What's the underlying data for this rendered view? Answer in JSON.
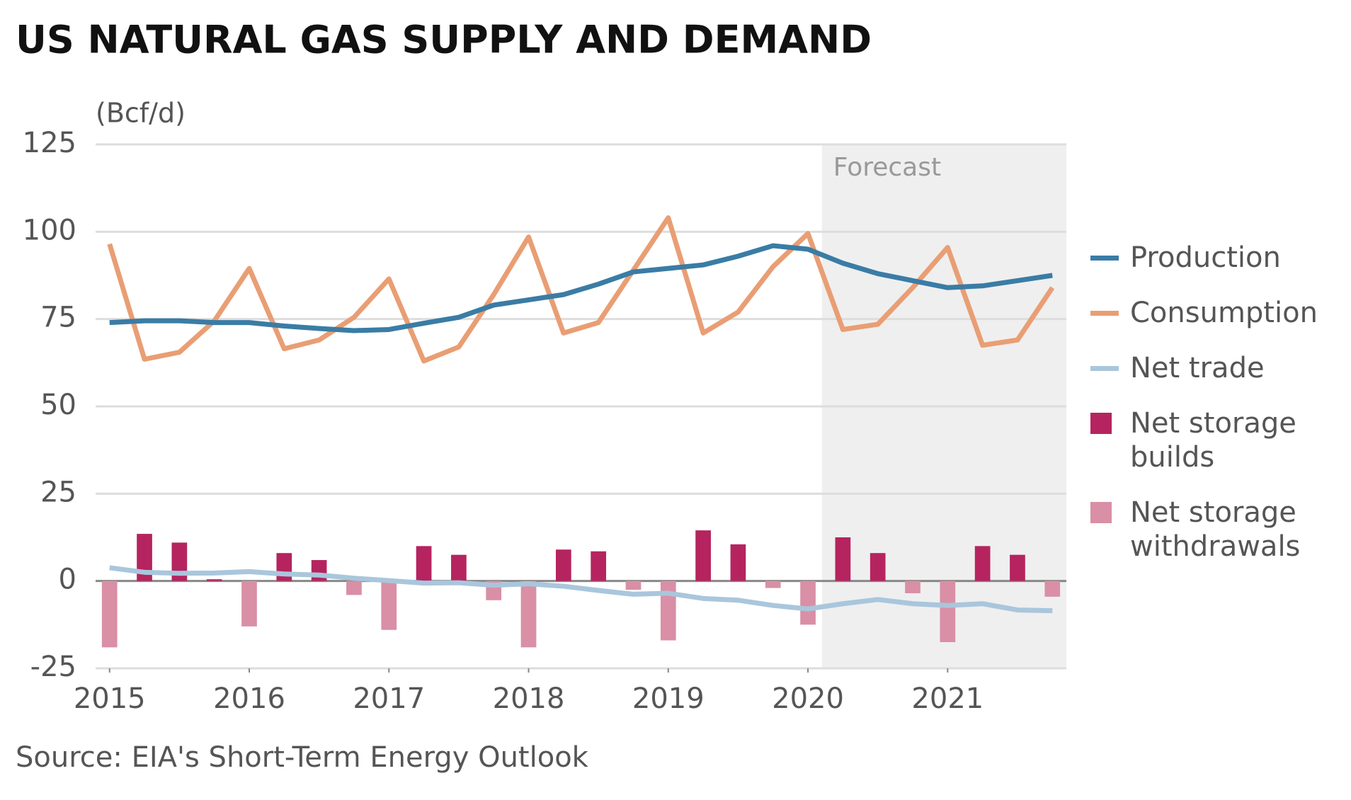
{
  "chart_data": {
    "type": "line",
    "title": "US NATURAL GAS SUPPLY AND DEMAND",
    "y_unit": "(Bcf/d)",
    "source": "Source: EIA's Short-Term Energy Outlook",
    "annotation": "Forecast",
    "shaded_region": [
      2020.1,
      2021.85
    ],
    "x": [
      2015,
      2015.25,
      2015.5,
      2015.75,
      2016,
      2016.25,
      2016.5,
      2016.75,
      2017,
      2017.25,
      2017.5,
      2017.75,
      2018,
      2018.25,
      2018.5,
      2018.75,
      2019,
      2019.25,
      2019.5,
      2019.75,
      2020,
      2020.25,
      2020.5,
      2020.75,
      2021,
      2021.25,
      2021.5,
      2021.75
    ],
    "xlim": [
      2014.9,
      2021.85
    ],
    "xticks": [
      2015,
      2016,
      2017,
      2018,
      2019,
      2020,
      2021
    ],
    "ylim": [
      -25,
      125
    ],
    "yticks": [
      -25,
      0,
      25,
      50,
      75,
      100,
      125
    ],
    "grid": true,
    "series": [
      {
        "name": "Production",
        "type": "line",
        "color": "#3a7ca5",
        "values": [
          74,
          74.5,
          74.5,
          74,
          74,
          73,
          72.3,
          71.7,
          72,
          73.8,
          75.5,
          79,
          80.5,
          82,
          85,
          88.5,
          89.5,
          90.5,
          93,
          96,
          95,
          91,
          88,
          86,
          84,
          84.5,
          86,
          87.5
        ]
      },
      {
        "name": "Consumption",
        "type": "line",
        "color": "#e99e74",
        "values": [
          96.5,
          63.5,
          65.5,
          74.5,
          89.5,
          66.5,
          69,
          75.5,
          86.5,
          63,
          67,
          82,
          98.5,
          71,
          74,
          89,
          104,
          71,
          77,
          90,
          99.5,
          72,
          73.5,
          84,
          95.5,
          67.5,
          69,
          84
        ]
      },
      {
        "name": "Net trade",
        "type": "line",
        "color": "#a9c6dc",
        "values": [
          3.8,
          2.5,
          2.2,
          2.3,
          2.7,
          2,
          1.7,
          0.8,
          0.1,
          -0.6,
          -0.5,
          -1.2,
          -0.8,
          -1.5,
          -2.7,
          -3.8,
          -3.5,
          -5,
          -5.5,
          -7,
          -8,
          -6.5,
          -5.3,
          -6.5,
          -7,
          -6.5,
          -8.3,
          -8.5
        ]
      },
      {
        "name": "Net storage builds",
        "type": "bar",
        "color": "#b5245f",
        "values": [
          null,
          13.5,
          11,
          0.5,
          null,
          8,
          6,
          null,
          null,
          10,
          7.5,
          null,
          null,
          9,
          8.5,
          null,
          null,
          14.5,
          10.5,
          null,
          null,
          12.5,
          8,
          null,
          null,
          10,
          7.5,
          null
        ]
      },
      {
        "name": "Net storage withdrawals",
        "type": "bar",
        "color": "#d98fa5",
        "values": [
          -19,
          null,
          null,
          null,
          -13,
          null,
          null,
          -4,
          -14,
          null,
          null,
          -5.5,
          -19,
          null,
          null,
          -2.5,
          -17,
          null,
          null,
          -2,
          -12.5,
          null,
          null,
          -3.5,
          -17.5,
          null,
          null,
          -4.5
        ]
      }
    ]
  }
}
